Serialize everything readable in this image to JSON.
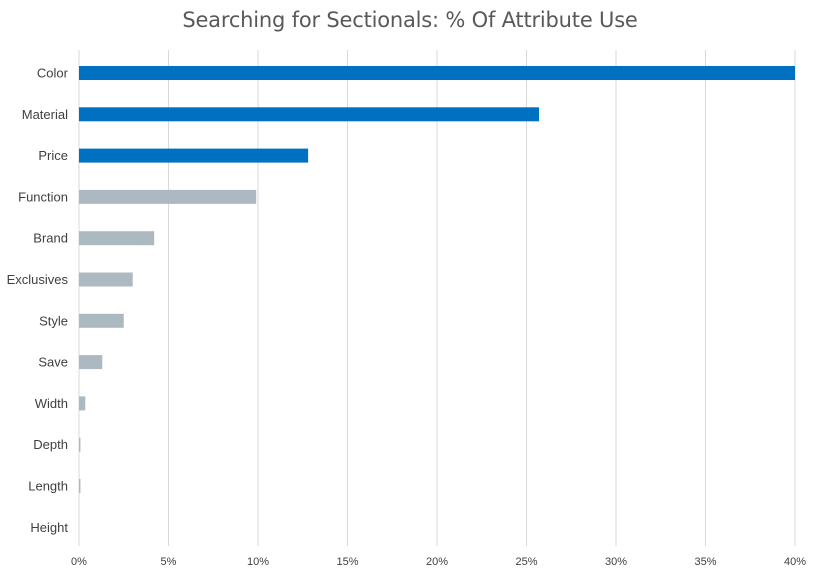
{
  "chart_data": {
    "type": "bar",
    "orientation": "horizontal",
    "title": "Searching for Sectionals: % Of Attribute Use",
    "xlabel": "",
    "ylabel": "",
    "categories": [
      "Color",
      "Material",
      "Price",
      "Function",
      "Brand",
      "Exclusives",
      "Style",
      "Save",
      "Width",
      "Depth",
      "Length",
      "Height"
    ],
    "values": [
      40.0,
      25.7,
      12.8,
      9.9,
      4.2,
      3.0,
      2.5,
      1.3,
      0.35,
      0.08,
      0.08,
      0.0
    ],
    "xlim": [
      0,
      40
    ],
    "xticks": [
      0,
      5,
      10,
      15,
      20,
      25,
      30,
      35,
      40
    ],
    "xtick_labels": [
      "0%",
      "5%",
      "10%",
      "15%",
      "20%",
      "25%",
      "30%",
      "35%",
      "40%"
    ],
    "highlight_count": 3,
    "colors": {
      "highlight": "#0070c0",
      "default": "#adb9c1",
      "grid": "#d9d9d9"
    },
    "grid": true,
    "legend": "none"
  }
}
